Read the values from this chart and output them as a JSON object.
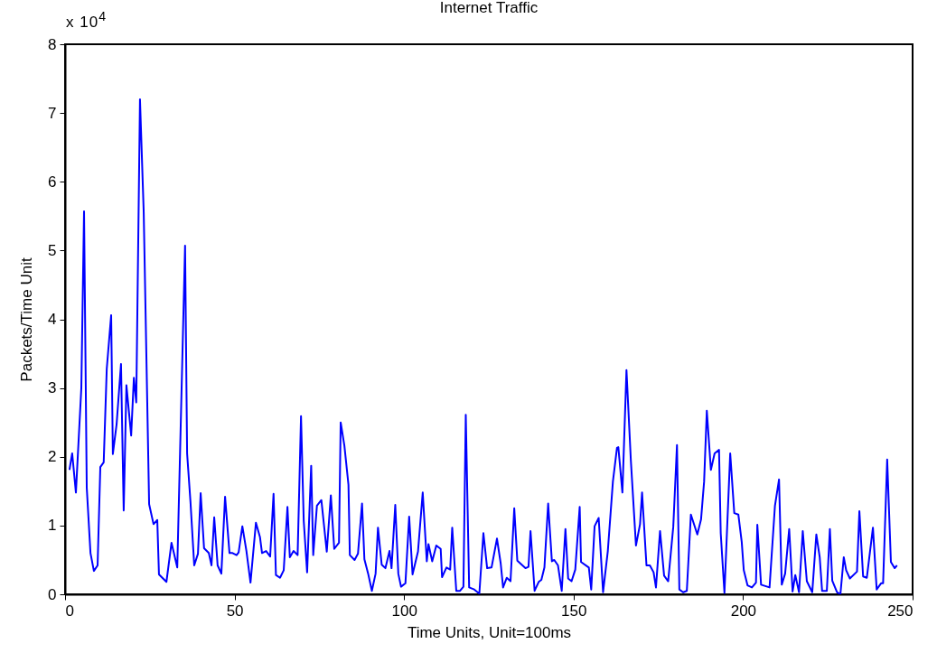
{
  "chart_data": {
    "type": "line",
    "title": "Internet Traffic",
    "xlabel": "Time Units, Unit=100ms",
    "ylabel": "Packets/Time Unit",
    "annotations": [
      "x 10$^{4}$"
    ],
    "xlim": [
      0,
      250
    ],
    "xticks": [
      0,
      50,
      100,
      150,
      200,
      250
    ],
    "ylim": [
      0,
      8
    ],
    "yticks": [
      0,
      1,
      2,
      3,
      4,
      5,
      6,
      7,
      8
    ],
    "grid": false,
    "series": [
      {
        "color": "#0000ff",
        "x": [
          1.3,
          2.1,
          3.2,
          4.8,
          5.6,
          6.4,
          7.5,
          8.5,
          9.6,
          10.4,
          11.4,
          12.3,
          13.6,
          14.1,
          15.2,
          16.5,
          17.3,
          18.1,
          19.5,
          20.3,
          21,
          22.1,
          23.2,
          24.8,
          26.1,
          27.2,
          27.7,
          29.9,
          31.4,
          33.1,
          35.4,
          36,
          37,
          38.1,
          39.2,
          40,
          41,
          42.4,
          43.2,
          44,
          45,
          46.1,
          47.2,
          48.5,
          49.4,
          50.6,
          51.2,
          52.3,
          53.5,
          54.7,
          56.3,
          57.5,
          58.1,
          59.3,
          60.5,
          61.5,
          62.2,
          63.4,
          64.5,
          65.6,
          66.3,
          67.4,
          68.6,
          69.6,
          70.4,
          71.4,
          72.6,
          73.2,
          74.3,
          75.6,
          77.2,
          78.4,
          79.4,
          80.8,
          81.3,
          82.4,
          83.6,
          84,
          85.4,
          86.4,
          87.6,
          88.3,
          89.4,
          90.5,
          91.6,
          92.3,
          93.4,
          94.5,
          95.7,
          96.3,
          97.4,
          98.3,
          99.1,
          100.4,
          101.5,
          102.5,
          104.1,
          105.5,
          106.7,
          107.2,
          108.3,
          109.5,
          110.8,
          111.2,
          112.5,
          113.6,
          114.2,
          115.4,
          116.5,
          117.5,
          118.2,
          119.2,
          120.7,
          122.2,
          123.4,
          124.5,
          125.8,
          127.4,
          128.5,
          129.2,
          130.3,
          131.4,
          132.5,
          133.4,
          134.7,
          135.8,
          136.7,
          137.3,
          138.5,
          139.7,
          140.5,
          141.4,
          142.5,
          143.6,
          144.3,
          145.4,
          146.5,
          147.6,
          148.4,
          149.4,
          150.5,
          151.8,
          152.2,
          154.5,
          155.2,
          156.2,
          157.4,
          158.7,
          160.1,
          161.6,
          162.8,
          163.2,
          164.4,
          165.6,
          166.9,
          168.4,
          169.6,
          170.2,
          171.5,
          172.5,
          173.6,
          174.3,
          175.5,
          176.7,
          177.9,
          179.4,
          180.5,
          181.2,
          182.3,
          183.4,
          184.6,
          186.5,
          187.6,
          188.5,
          189.3,
          190.5,
          191.6,
          192.9,
          193.4,
          194.5,
          196.2,
          197.4,
          198.6,
          199.6,
          200.2,
          201.3,
          202.6,
          203.8,
          204.2,
          205.3,
          207.8,
          209.4,
          210.6,
          211.4,
          212.4,
          213.6,
          214.6,
          215.4,
          216.5,
          217.6,
          218.8,
          220.4,
          221.6,
          222.6,
          223.3,
          224.7,
          225.6,
          226.3,
          227.7,
          228.7,
          229.7,
          230.4,
          231.5,
          233.6,
          234.3,
          235.4,
          236.5,
          238.3,
          239.4,
          240.7,
          241.3,
          242.5,
          243.6,
          244.7,
          245.4
        ],
        "values": [
          1.81,
          2.05,
          1.48,
          3.0,
          5.57,
          1.55,
          0.6,
          0.34,
          0.42,
          1.85,
          1.92,
          3.28,
          4.06,
          2.04,
          2.47,
          3.35,
          1.22,
          3.04,
          2.31,
          3.15,
          2.79,
          7.2,
          5.56,
          1.31,
          1.02,
          1.08,
          0.29,
          0.18,
          0.75,
          0.39,
          5.07,
          2.05,
          1.34,
          0.42,
          0.59,
          1.47,
          0.67,
          0.6,
          0.42,
          1.12,
          0.42,
          0.3,
          1.42,
          0.6,
          0.6,
          0.57,
          0.61,
          0.99,
          0.63,
          0.17,
          1.04,
          0.83,
          0.6,
          0.63,
          0.55,
          1.46,
          0.28,
          0.24,
          0.35,
          1.27,
          0.54,
          0.63,
          0.57,
          2.59,
          1.07,
          0.32,
          1.87,
          0.57,
          1.29,
          1.37,
          0.62,
          1.44,
          0.66,
          0.75,
          2.5,
          2.16,
          1.59,
          0.57,
          0.5,
          0.59,
          1.32,
          0.51,
          0.3,
          0.05,
          0.3,
          0.97,
          0.43,
          0.38,
          0.63,
          0.38,
          1.3,
          0.3,
          0.11,
          0.16,
          1.13,
          0.29,
          0.62,
          1.48,
          0.48,
          0.73,
          0.48,
          0.71,
          0.66,
          0.25,
          0.39,
          0.36,
          0.97,
          0.05,
          0.05,
          0.11,
          2.61,
          0.1,
          0.07,
          0.01,
          0.89,
          0.38,
          0.39,
          0.81,
          0.45,
          0.1,
          0.24,
          0.19,
          1.25,
          0.49,
          0.43,
          0.38,
          0.4,
          0.92,
          0.05,
          0.18,
          0.21,
          0.39,
          1.32,
          0.48,
          0.5,
          0.42,
          0.05,
          0.95,
          0.23,
          0.19,
          0.36,
          1.27,
          0.47,
          0.39,
          0.07,
          0.99,
          1.11,
          0.03,
          0.63,
          1.64,
          2.13,
          2.14,
          1.48,
          3.26,
          1.94,
          0.71,
          1.02,
          1.48,
          0.42,
          0.42,
          0.32,
          0.1,
          0.92,
          0.27,
          0.19,
          0.98,
          2.17,
          0.07,
          0.03,
          0.05,
          1.16,
          0.87,
          1.09,
          1.64,
          2.67,
          1.81,
          2.05,
          2.1,
          0.89,
          0.02,
          2.05,
          1.18,
          1.16,
          0.76,
          0.35,
          0.13,
          0.1,
          0.17,
          1.01,
          0.14,
          0.1,
          1.29,
          1.67,
          0.14,
          0.3,
          0.95,
          0.04,
          0.28,
          0.03,
          0.92,
          0.19,
          0.03,
          0.87,
          0.54,
          0.05,
          0.05,
          0.95,
          0.2,
          0.03,
          0.0,
          0.54,
          0.35,
          0.23,
          0.33,
          1.21,
          0.26,
          0.24,
          0.97,
          0.07,
          0.16,
          0.16,
          1.96,
          0.47,
          0.38,
          0.42
        ]
      }
    ]
  }
}
